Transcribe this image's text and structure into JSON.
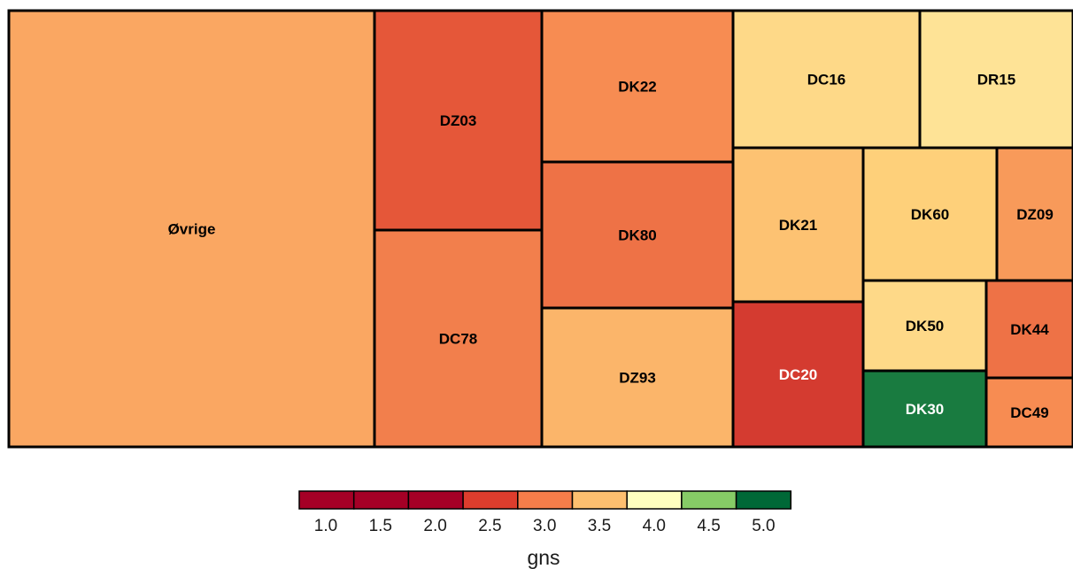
{
  "chart_data": {
    "type": "treemap",
    "title": "",
    "color_variable": "gns",
    "tiles": [
      {
        "label": "Øvrige",
        "gns": 3.2
      },
      {
        "label": "DZ03",
        "gns": 2.6
      },
      {
        "label": "DC78",
        "gns": 2.9
      },
      {
        "label": "DK22",
        "gns": 3.0
      },
      {
        "label": "DK80",
        "gns": 2.8
      },
      {
        "label": "DZ93",
        "gns": 3.3
      },
      {
        "label": "DC16",
        "gns": 3.6
      },
      {
        "label": "DR15",
        "gns": 3.7
      },
      {
        "label": "DK21",
        "gns": 3.4
      },
      {
        "label": "DK60",
        "gns": 3.5
      },
      {
        "label": "DZ09",
        "gns": 3.1
      },
      {
        "label": "DC20",
        "gns": 2.4
      },
      {
        "label": "DK50",
        "gns": 3.6
      },
      {
        "label": "DK44",
        "gns": 2.8
      },
      {
        "label": "DK30",
        "gns": 4.9
      },
      {
        "label": "DC49",
        "gns": 3.0
      }
    ],
    "legend": {
      "title": "gns",
      "placement": "bottom",
      "ticks": [
        "1.0",
        "1.5",
        "2.0",
        "2.5",
        "3.0",
        "3.5",
        "4.0",
        "4.5",
        "5.0"
      ],
      "colors": [
        "#a50026",
        "#a50026",
        "#a50026",
        "#d73027",
        "#f46d43",
        "#fdae61",
        "#fee08b",
        "#ffffbf",
        "#a6d96a",
        "#1a9850",
        "#006837"
      ]
    }
  }
}
